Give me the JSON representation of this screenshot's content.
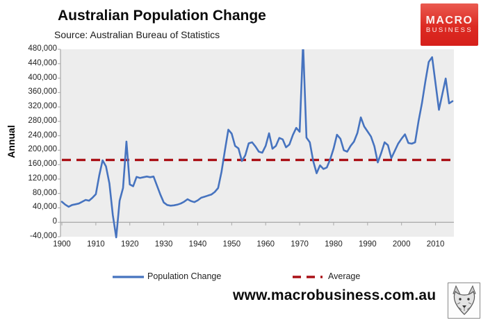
{
  "header": {
    "title": "Australian Population Change",
    "subtitle": "Source: Australian Bureau of Statistics"
  },
  "brand": {
    "logo_line1": "MACRO",
    "logo_line2": "BUSINESS",
    "logo_bg": "#DC2A22"
  },
  "footer": {
    "website": "www.macrobusiness.com.au",
    "logo_icon": "wolf-sketch-icon"
  },
  "chart_data": {
    "type": "line",
    "title": "Australian Population Change",
    "source": "Australian Bureau of Statistics",
    "ylabel": "Annual",
    "ylim": [
      -40000,
      480000
    ],
    "ytick_step": 40000,
    "xticks": [
      1900,
      1910,
      1920,
      1930,
      1940,
      1950,
      1960,
      1970,
      1980,
      1990,
      2000,
      2010
    ],
    "x_start": 1900,
    "x_end": 2015,
    "grid": "off",
    "plot_bg": "#EDEDED",
    "axis_color": "#A6A6A6",
    "legend_position": "bottom",
    "series": [
      {
        "name": "Population Change",
        "type": "line",
        "color": "#4673BF",
        "values": [
          57000,
          49000,
          43000,
          48000,
          50000,
          52000,
          57000,
          62000,
          60000,
          68000,
          78000,
          130000,
          172000,
          155000,
          108000,
          20000,
          -42000,
          60000,
          95000,
          224000,
          105000,
          100000,
          126000,
          123000,
          125000,
          127000,
          125000,
          127000,
          102000,
          77000,
          55000,
          48000,
          46000,
          47000,
          49000,
          52000,
          57000,
          64000,
          59000,
          56000,
          61000,
          68000,
          71000,
          74000,
          77000,
          84000,
          95000,
          140000,
          200000,
          257000,
          246000,
          212000,
          205000,
          170000,
          186000,
          219000,
          222000,
          210000,
          196000,
          193000,
          212000,
          247000,
          204000,
          212000,
          234000,
          230000,
          208000,
          216000,
          242000,
          262000,
          251000,
          497000,
          235000,
          222000,
          170000,
          136000,
          158000,
          148000,
          152000,
          175000,
          205000,
          243000,
          232000,
          200000,
          196000,
          212000,
          224000,
          248000,
          291000,
          266000,
          252000,
          238000,
          211000,
          166000,
          192000,
          222000,
          214000,
          178000,
          198000,
          218000,
          232000,
          244000,
          220000,
          218000,
          222000,
          280000,
          330000,
          390000,
          445000,
          458000,
          385000,
          312000,
          355000,
          399000,
          330000,
          336000
        ]
      },
      {
        "name": "Average",
        "type": "hline",
        "style": "dashed",
        "color": "#AA1016",
        "value": 173000
      }
    ]
  }
}
